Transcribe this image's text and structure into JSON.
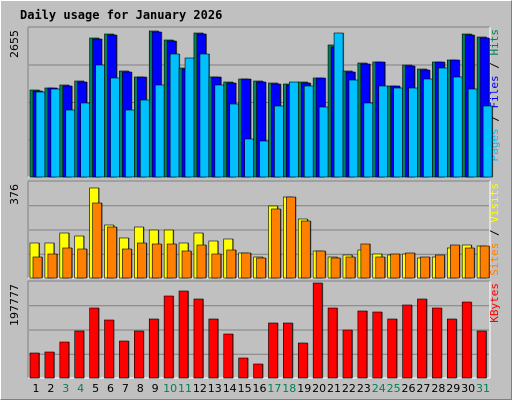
{
  "chart_data": {
    "type": "bar",
    "title": "Daily usage for January 2026",
    "categories": [
      "1",
      "2",
      "3",
      "4",
      "5",
      "6",
      "7",
      "8",
      "9",
      "10",
      "11",
      "12",
      "13",
      "14",
      "15",
      "16",
      "17",
      "18",
      "19",
      "20",
      "21",
      "22",
      "23",
      "24",
      "25",
      "26",
      "27",
      "28",
      "29",
      "30",
      "31"
    ],
    "weekend_days": [
      3,
      4,
      10,
      11,
      17,
      18,
      24,
      25,
      31
    ],
    "colors": {
      "hits": "#00805c",
      "files": "#0000ff",
      "pages": "#00c0ff",
      "visits": "#ffff00",
      "sites": "#ff8000",
      "kbytes": "#ff0000",
      "title": "#0000ff",
      "weekday_label": "#000000",
      "weekend_label": "#00805c",
      "background": "#c0c0c0"
    },
    "panels": [
      {
        "id": "hits",
        "max_label": "2655",
        "ylim": [
          0,
          2655
        ],
        "legend": [
          {
            "text": "Pages",
            "color": "#00c0ff"
          },
          {
            "text": " / ",
            "color": "#000000"
          },
          {
            "text": "Files",
            "color": "#0000ff"
          },
          {
            "text": " / ",
            "color": "#000000"
          },
          {
            "text": "Hits",
            "color": "#00805c"
          }
        ],
        "series": [
          {
            "name": "Hits",
            "color": "#00805c",
            "values": [
              1560,
              1600,
              1650,
              1720,
              2500,
              2560,
              1900,
              1800,
              2620,
              2460,
              1950,
              2580,
              1800,
              1700,
              1760,
              1720,
              1680,
              1660,
              1700,
              1780,
              2360,
              1900,
              2040,
              2070,
              1640,
              2010,
              1930,
              2070,
              2100,
              2570,
              2510
            ]
          },
          {
            "name": "Files",
            "color": "#0000ff",
            "values": [
              1550,
              1590,
              1640,
              1700,
              2480,
              2540,
              1880,
              1790,
              2600,
              2440,
              1930,
              2560,
              1790,
              1690,
              1750,
              1710,
              1670,
              1650,
              1690,
              1770,
              2340,
              1890,
              2030,
              2060,
              1630,
              2000,
              1920,
              2060,
              2090,
              2550,
              2490
            ]
          },
          {
            "name": "Pages",
            "color": "#00c0ff",
            "values": [
              1520,
              1570,
              1210,
              1330,
              2010,
              1770,
              1210,
              1390,
              1650,
              2210,
              2140,
              2200,
              1650,
              1310,
              690,
              640,
              1280,
              1700,
              1640,
              1260,
              2580,
              1740,
              1320,
              1630,
              1600,
              1600,
              1750,
              1960,
              1790,
              1580,
              1270
            ]
          }
        ]
      },
      {
        "id": "visits",
        "max_label": "376",
        "ylim": [
          0,
          376
        ],
        "legend": [
          {
            "text": "Sites",
            "color": "#ff8000"
          },
          {
            "text": " / ",
            "color": "#000000"
          },
          {
            "text": "Visits",
            "color": "#ffff00"
          }
        ],
        "series": [
          {
            "name": "Visits",
            "color": "#ffff00",
            "values": [
              140,
              140,
              180,
              165,
              355,
              210,
              160,
              200,
              190,
              190,
              140,
              180,
              145,
              155,
              100,
              85,
              285,
              320,
              235,
              105,
              85,
              90,
              110,
              95,
              90,
              95,
              80,
              85,
              120,
              130,
              125
            ]
          },
          {
            "name": "Sites",
            "color": "#ff8000",
            "values": [
              85,
              95,
              120,
              115,
              295,
              200,
              115,
              140,
              135,
              135,
              105,
              130,
              95,
              110,
              100,
              80,
              275,
              320,
              225,
              105,
              80,
              85,
              135,
              85,
              95,
              100,
              85,
              90,
              130,
              120,
              125
            ]
          }
        ]
      },
      {
        "id": "kbytes",
        "max_label": "197777",
        "ylim": [
          0,
          197777
        ],
        "legend": [
          {
            "text": "KBytes",
            "color": "#ff0000"
          }
        ],
        "series": [
          {
            "name": "KBytes",
            "color": "#ff0000",
            "values": [
              52000,
              55000,
              75000,
              98000,
              145000,
              120000,
              78000,
              98000,
              122000,
              170000,
              182000,
              165000,
              123000,
              92000,
              42000,
              30000,
              115000,
              115000,
              72000,
              197777,
              145000,
              100000,
              140000,
              138000,
              122000,
              152000,
              165000,
              145000,
              122000,
              158000,
              98000
            ]
          }
        ]
      }
    ]
  }
}
